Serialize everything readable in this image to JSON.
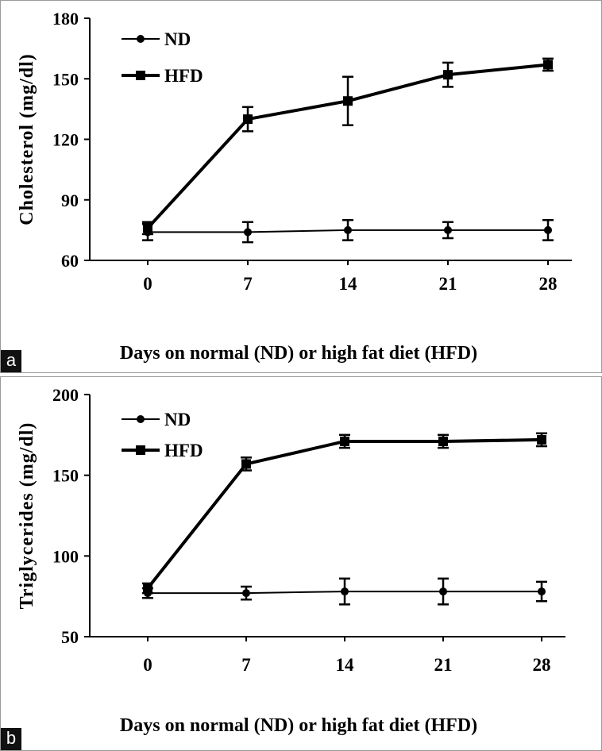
{
  "chart_data": [
    {
      "type": "line",
      "panel_label": "a",
      "title": "",
      "xlabel": "Days on normal (ND) or high fat diet (HFD)",
      "ylabel": "Cholesterol (mg/dl)",
      "categories": [
        "0",
        "7",
        "14",
        "21",
        "28"
      ],
      "ylim": [
        60,
        180
      ],
      "yticks": [
        60,
        90,
        120,
        150,
        180
      ],
      "legend_position": "top-left",
      "series": [
        {
          "name": "ND",
          "marker": "circle",
          "line": "thin",
          "values": [
            74,
            74,
            75,
            75,
            75
          ],
          "errors": [
            4,
            5,
            5,
            4,
            5
          ]
        },
        {
          "name": "HFD",
          "marker": "square",
          "line": "thick",
          "values": [
            76,
            130,
            139,
            152,
            157
          ],
          "errors": [
            3,
            6,
            12,
            6,
            3
          ]
        }
      ]
    },
    {
      "type": "line",
      "panel_label": "b",
      "title": "",
      "xlabel": "Days on normal (ND) or high fat diet (HFD)",
      "ylabel": "Triglycerides (mg/dl)",
      "categories": [
        "0",
        "7",
        "14",
        "21",
        "28"
      ],
      "ylim": [
        50,
        200
      ],
      "yticks": [
        50,
        100,
        150,
        200
      ],
      "legend_position": "top-left",
      "series": [
        {
          "name": "ND",
          "marker": "circle",
          "line": "thin",
          "values": [
            77,
            77,
            78,
            78,
            78
          ],
          "errors": [
            3,
            4,
            8,
            8,
            6
          ]
        },
        {
          "name": "HFD",
          "marker": "square",
          "line": "thick",
          "values": [
            80,
            157,
            171,
            171,
            172
          ],
          "errors": [
            3,
            4,
            4,
            4,
            4
          ]
        }
      ]
    }
  ]
}
